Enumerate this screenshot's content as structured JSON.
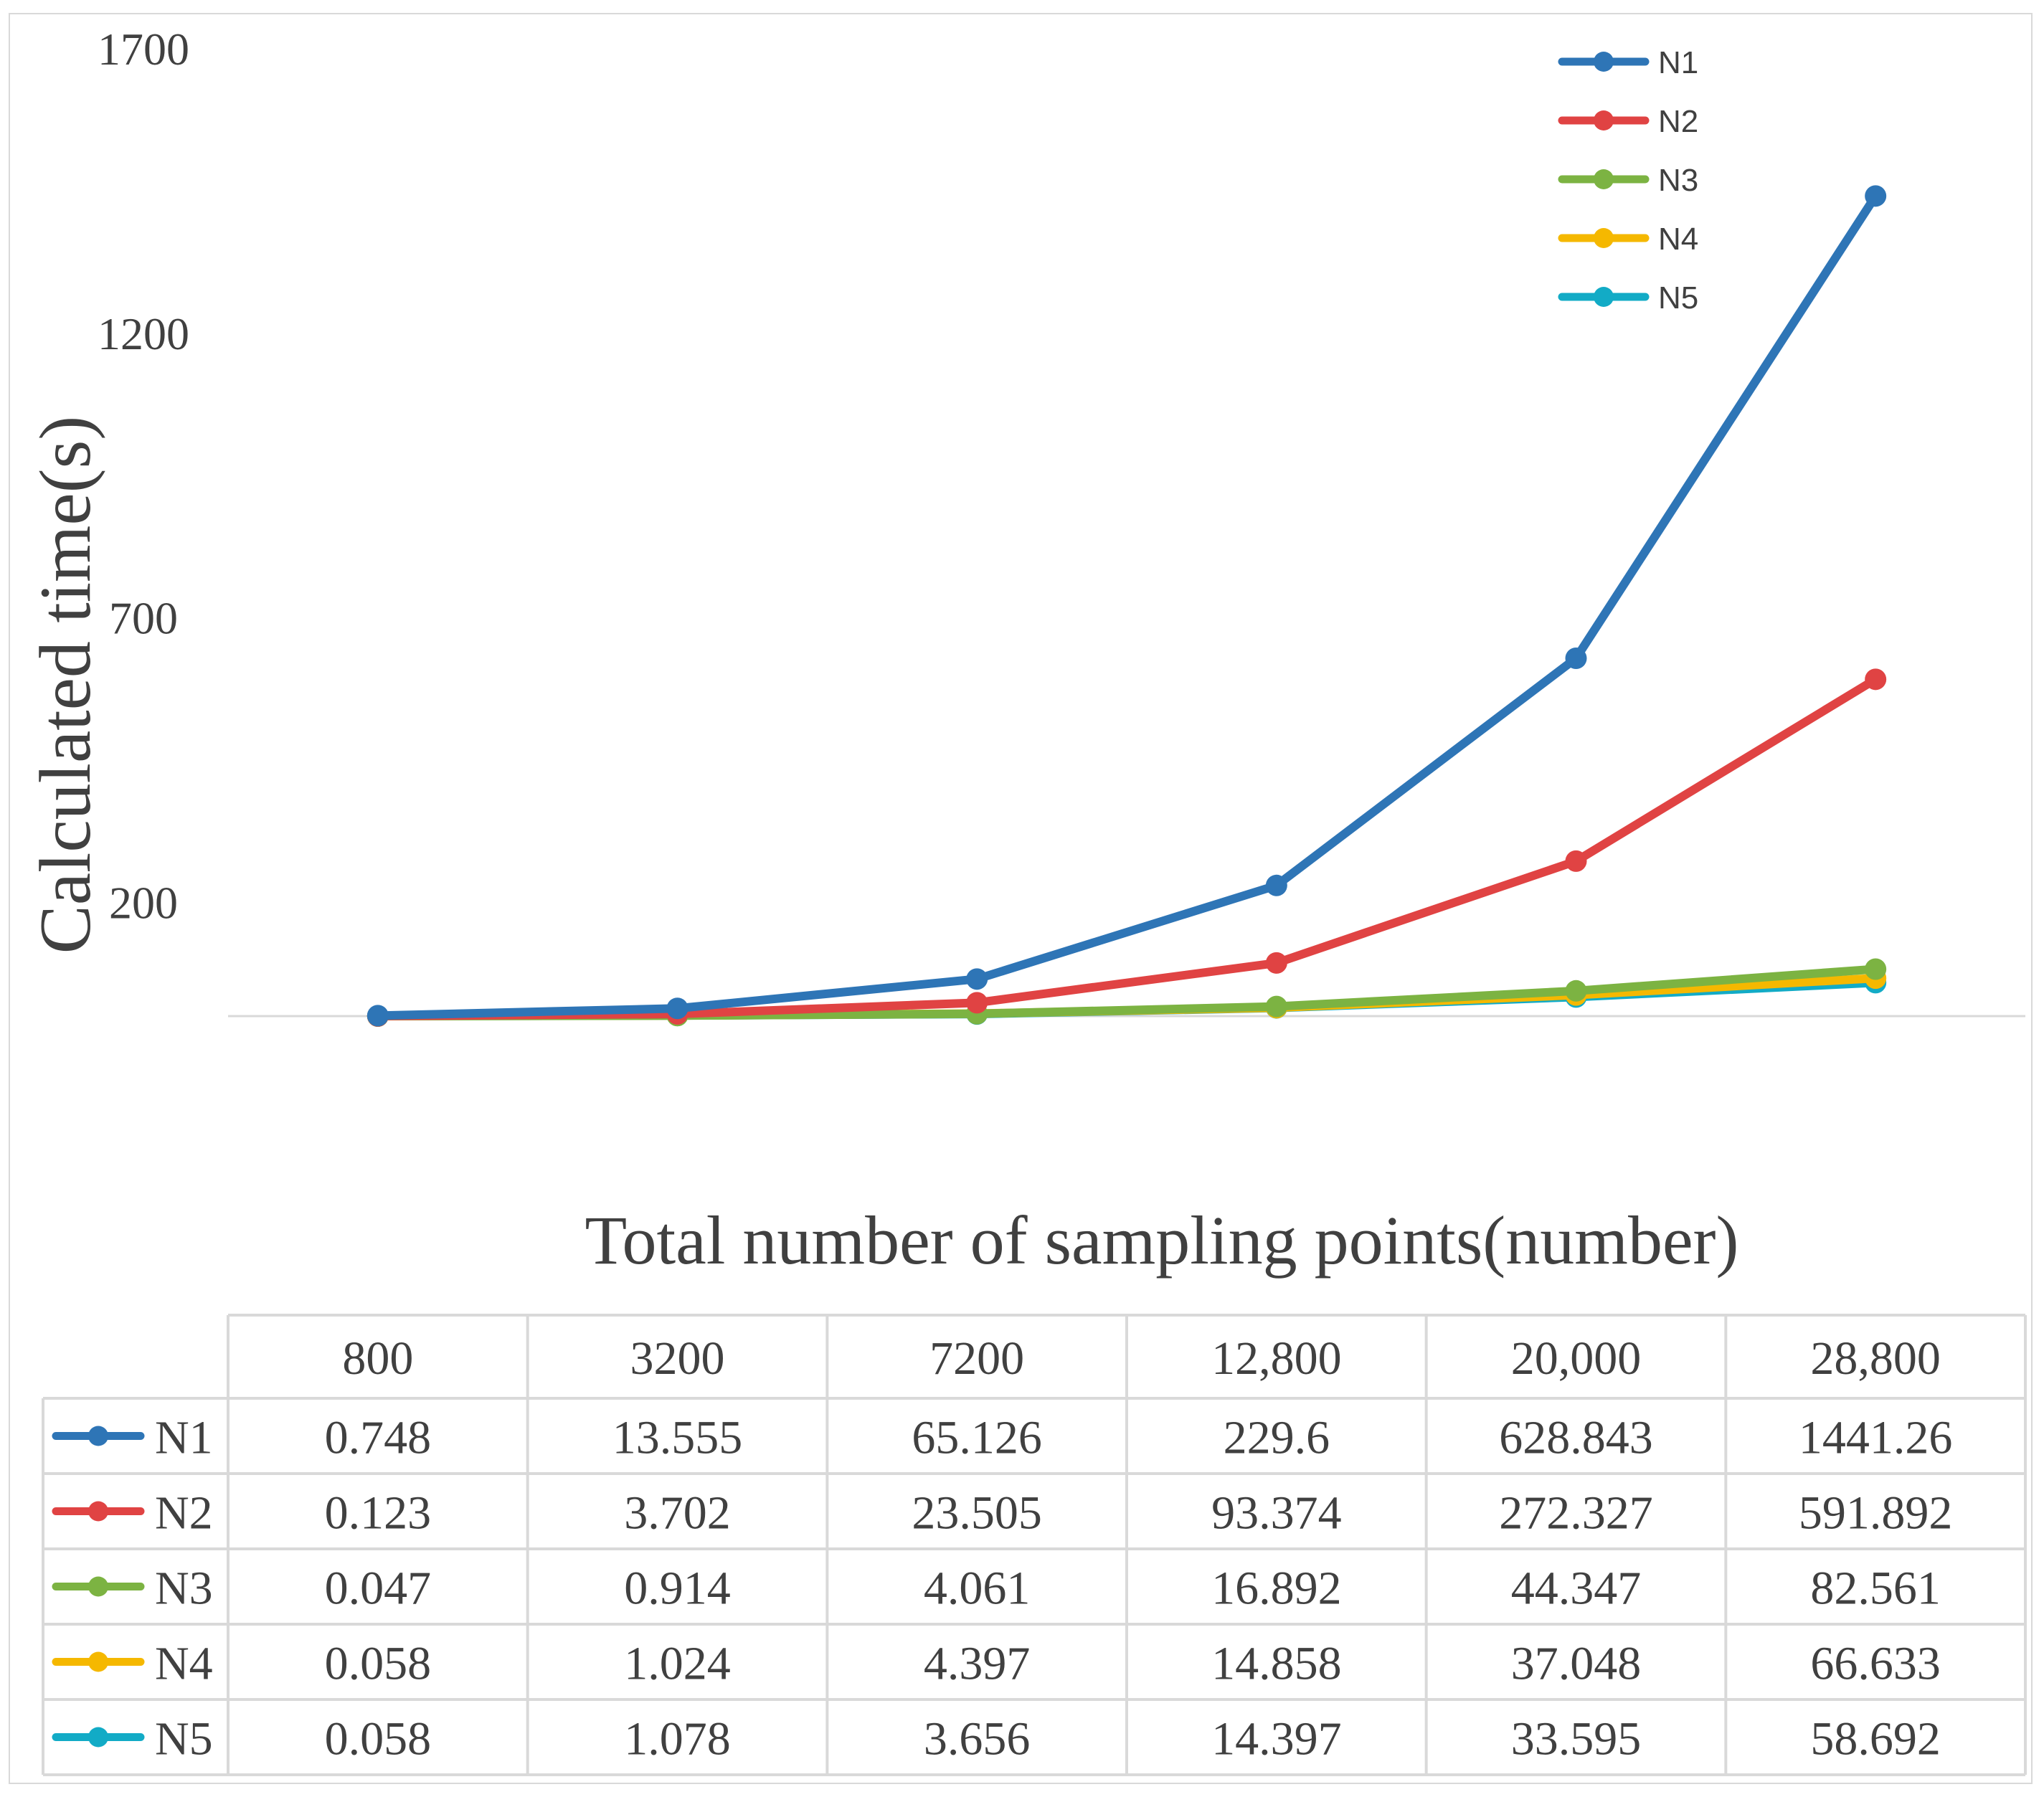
{
  "chart_data": {
    "type": "line",
    "title": "",
    "xlabel": "Total number of sampling points(number)",
    "ylabel": "Calculated time(s)",
    "categories": [
      "800",
      "3200",
      "7200",
      "12,800",
      "20,000",
      "28,800"
    ],
    "y_ticks": [
      "1700",
      "1200",
      "700",
      "200"
    ],
    "y_tick_values": [
      1700,
      1200,
      700,
      200
    ],
    "ylim": [
      -300,
      1700
    ],
    "legend_position": "top-right",
    "series": [
      {
        "name": "N1",
        "color": "#2E75B6",
        "values": [
          0.748,
          13.555,
          65.126,
          229.6,
          628.843,
          1441.26
        ],
        "labels": [
          "0.748",
          "13.555",
          "65.126",
          "229.6",
          "628.843",
          "1441.26"
        ]
      },
      {
        "name": "N2",
        "color": "#E04343",
        "values": [
          0.123,
          3.702,
          23.505,
          93.374,
          272.327,
          591.892
        ],
        "labels": [
          "0.123",
          "3.702",
          "23.505",
          "93.374",
          "272.327",
          "591.892"
        ]
      },
      {
        "name": "N3",
        "color": "#7CB342",
        "values": [
          0.047,
          0.914,
          4.061,
          16.892,
          44.347,
          82.561
        ],
        "labels": [
          "0.047",
          "0.914",
          "4.061",
          "16.892",
          "44.347",
          "82.561"
        ]
      },
      {
        "name": "N4",
        "color": "#F5B800",
        "values": [
          0.058,
          1.024,
          4.397,
          14.858,
          37.048,
          66.633
        ],
        "labels": [
          "0.058",
          "1.024",
          "4.397",
          "14.858",
          "37.048",
          "66.633"
        ]
      },
      {
        "name": "N5",
        "color": "#12ABC6",
        "values": [
          0.058,
          1.078,
          3.656,
          14.397,
          33.595,
          58.692
        ],
        "labels": [
          "0.058",
          "1.078",
          "3.656",
          "14.397",
          "33.595",
          "58.692"
        ]
      }
    ]
  }
}
